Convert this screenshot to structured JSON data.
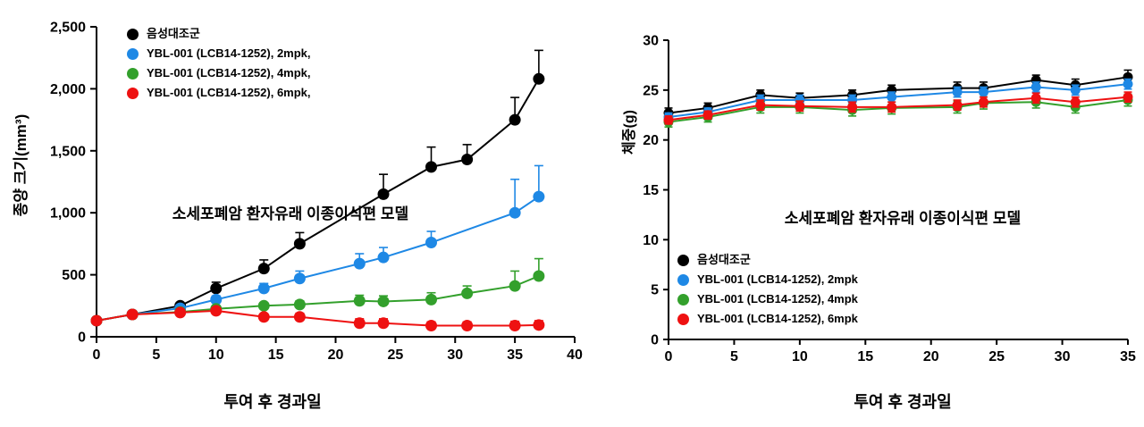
{
  "chart_data": [
    {
      "id": "tumor-volume",
      "type": "line",
      "ylabel": "종양 크기(mm³)",
      "xlabel": "투여 후 경과일",
      "annotation": "소세포폐암 환자유래 이종이식편 모델",
      "xlim": [
        0,
        40
      ],
      "ylim": [
        0,
        2500
      ],
      "xticks": [
        0,
        5,
        10,
        15,
        20,
        25,
        30,
        35,
        40
      ],
      "xtick_labels": [
        "0",
        "5",
        "10",
        "15",
        "20",
        "25",
        "30",
        "35",
        "40"
      ],
      "yticks": [
        0,
        500,
        1000,
        1500,
        2000,
        2500
      ],
      "ytick_labels": [
        "0",
        "500",
        "1,000",
        "1,500",
        "2,000",
        "2,500"
      ],
      "legend_position": "top-left",
      "grid": false,
      "x": [
        0,
        3,
        7,
        10,
        14,
        17,
        22,
        24,
        28,
        31,
        35,
        37
      ],
      "series": [
        {
          "name": "음성대조군",
          "color": "#000000",
          "values": [
            130,
            180,
            250,
            390,
            550,
            750,
            null,
            1150,
            1370,
            1430,
            1750,
            2080
          ],
          "errors": [
            0,
            0,
            0,
            50,
            70,
            90,
            0,
            160,
            160,
            120,
            180,
            230
          ]
        },
        {
          "name": "YBL-001 (LCB14-1252), 2mpk,",
          "color": "#1e88e5",
          "values": [
            130,
            180,
            230,
            300,
            390,
            470,
            590,
            640,
            760,
            null,
            1000,
            1130
          ],
          "errors": [
            0,
            0,
            20,
            30,
            40,
            60,
            80,
            80,
            90,
            0,
            270,
            250
          ]
        },
        {
          "name": "YBL-001 (LCB14-1252), 4mpk,",
          "color": "#33a02c",
          "values": [
            130,
            180,
            200,
            225,
            250,
            260,
            290,
            285,
            300,
            350,
            410,
            490
          ],
          "errors": [
            0,
            0,
            15,
            20,
            25,
            30,
            45,
            45,
            55,
            60,
            120,
            140
          ]
        },
        {
          "name": "YBL-001 (LCB14-1252), 6mpk,",
          "color": "#ee1111",
          "values": [
            130,
            180,
            195,
            210,
            160,
            160,
            110,
            110,
            90,
            90,
            90,
            95
          ],
          "errors": [
            0,
            0,
            15,
            20,
            25,
            30,
            35,
            35,
            30,
            30,
            35,
            35
          ]
        }
      ]
    },
    {
      "id": "body-weight",
      "type": "line",
      "ylabel": "체중(g)",
      "xlabel": "투여 후 경과일",
      "annotation": "소세포폐암 환자유래 이종이식편 모델",
      "xlim": [
        0,
        35
      ],
      "ylim": [
        0,
        30
      ],
      "xticks": [
        0,
        5,
        10,
        15,
        20,
        25,
        30,
        35
      ],
      "xtick_labels": [
        "0",
        "5",
        "10",
        "15",
        "20",
        "25",
        "30",
        "35"
      ],
      "yticks": [
        0,
        5,
        10,
        15,
        20,
        25,
        30
      ],
      "ytick_labels": [
        "0",
        "5",
        "10",
        "15",
        "20",
        "25",
        "30"
      ],
      "legend_position": "bottom-left",
      "grid": false,
      "x": [
        0,
        3,
        7,
        10,
        14,
        17,
        22,
        24,
        28,
        31,
        35
      ],
      "series": [
        {
          "name": "음성대조군",
          "color": "#000000",
          "values": [
            22.7,
            23.2,
            24.5,
            24.2,
            24.5,
            25.0,
            25.2,
            25.2,
            26.0,
            25.5,
            26.3
          ],
          "errors": [
            0.5,
            0.5,
            0.5,
            0.5,
            0.5,
            0.5,
            0.6,
            0.6,
            0.5,
            0.6,
            0.7
          ]
        },
        {
          "name": "YBL-001 (LCB14-1252), 2mpk",
          "color": "#1e88e5",
          "values": [
            22.3,
            22.8,
            24.0,
            24.0,
            24.0,
            24.3,
            24.8,
            24.8,
            25.3,
            25.0,
            25.6
          ],
          "errors": [
            0.4,
            0.4,
            0.5,
            0.5,
            0.5,
            0.5,
            0.5,
            0.5,
            0.5,
            0.5,
            0.5
          ]
        },
        {
          "name": "YBL-001 (LCB14-1252), 4mpk",
          "color": "#33a02c",
          "values": [
            21.8,
            22.3,
            23.3,
            23.3,
            23.0,
            23.2,
            23.3,
            23.7,
            23.8,
            23.3,
            24.0
          ],
          "errors": [
            0.5,
            0.5,
            0.6,
            0.6,
            0.6,
            0.6,
            0.6,
            0.6,
            0.6,
            0.6,
            0.6
          ]
        },
        {
          "name": "YBL-001 (LCB14-1252), 6mpk",
          "color": "#ee1111",
          "values": [
            22.0,
            22.5,
            23.5,
            23.4,
            23.3,
            23.3,
            23.5,
            23.8,
            24.2,
            23.8,
            24.3
          ],
          "errors": [
            0.4,
            0.4,
            0.5,
            0.5,
            0.5,
            0.5,
            0.5,
            0.5,
            0.5,
            0.5,
            0.5
          ]
        }
      ]
    }
  ]
}
